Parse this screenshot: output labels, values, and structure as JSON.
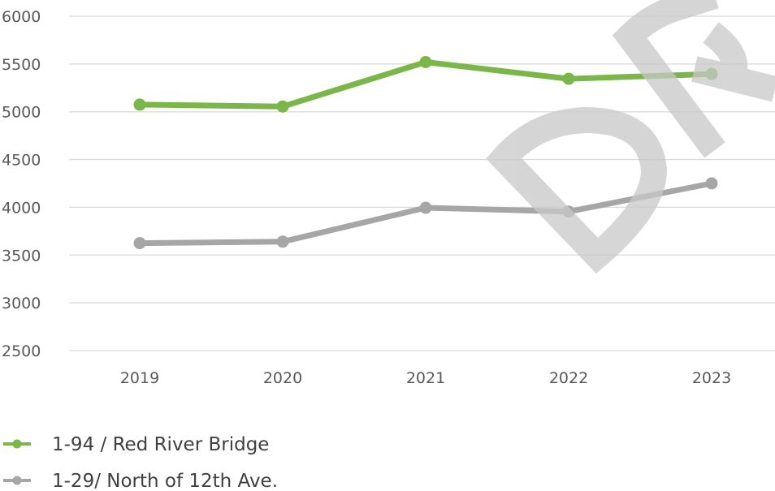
{
  "chart_data": {
    "type": "line",
    "categories": [
      "2019",
      "2020",
      "2021",
      "2022",
      "2023"
    ],
    "ylim": [
      2500,
      6000
    ],
    "yticks": [
      2500,
      3000,
      3500,
      4000,
      4500,
      5000,
      5500,
      6000
    ],
    "grid": true,
    "legend_position": "bottom-left",
    "series": [
      {
        "name": "1-94 / Red River Bridge",
        "color": "#7ab648",
        "values": [
          5075,
          5055,
          5520,
          5345,
          5395
        ]
      },
      {
        "name": "1-29/ North of 12th Ave.",
        "color": "#a6a6a6",
        "values": [
          3625,
          3640,
          3995,
          3955,
          4250
        ]
      }
    ],
    "watermark": {
      "text": "DRAFT",
      "color": "#c8c8c8"
    }
  }
}
